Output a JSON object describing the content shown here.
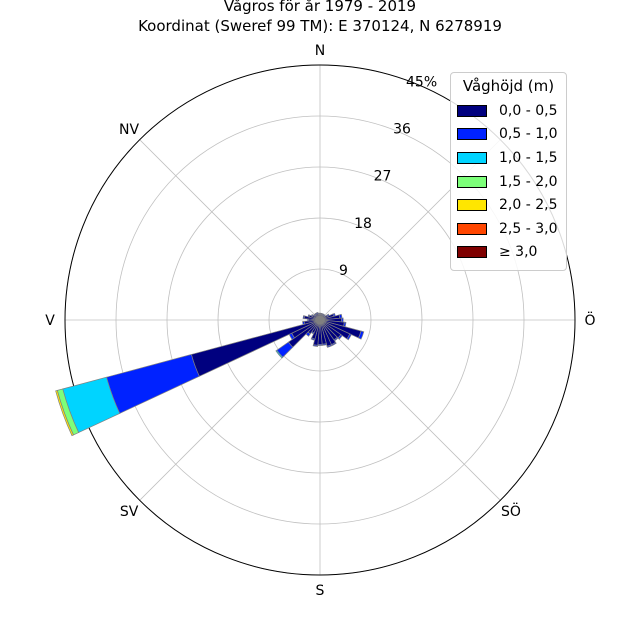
{
  "chart_data": {
    "type": "polar-bar",
    "title": "Vågros för år 1979 - 2019",
    "subtitle": "Koordinat (Sweref 99 TM): E 370124, N 6278919",
    "radial_tick_labels": [
      "9",
      "18",
      "27",
      "36",
      "45%"
    ],
    "rmax": 45,
    "direction_labels": [
      {
        "label": "N",
        "deg": 0
      },
      {
        "label": "NV",
        "deg": 315
      },
      {
        "label": "V",
        "deg": 270
      },
      {
        "label": "SV",
        "deg": 225
      },
      {
        "label": "S",
        "deg": 180
      },
      {
        "label": "SÖ",
        "deg": 135
      },
      {
        "label": "Ö",
        "deg": 90
      }
    ],
    "legend_title": "Våghöjd (m)",
    "legend_position": "top-right",
    "bins": [
      {
        "label": "0,0 - 0,5",
        "color": "#00007f"
      },
      {
        "label": "0,5 - 1,0",
        "color": "#0022ff"
      },
      {
        "label": "1,0 - 1,5",
        "color": "#00d4ff"
      },
      {
        "label": "1,5 - 2,0",
        "color": "#7cff79"
      },
      {
        "label": "2,0 - 2,5",
        "color": "#ffe600"
      },
      {
        "label": "2,5 - 3,0",
        "color": "#ff4600"
      },
      {
        "label": "≥ 3,0",
        "color": "#7f0000"
      }
    ],
    "sector_width_deg": 10,
    "sectors": [
      {
        "dir": 0,
        "values": [
          1.0,
          0.2,
          0,
          0,
          0,
          0,
          0
        ]
      },
      {
        "dir": 10,
        "values": [
          1.0,
          0.2,
          0,
          0,
          0,
          0,
          0
        ]
      },
      {
        "dir": 20,
        "values": [
          1.0,
          0.2,
          0,
          0,
          0,
          0,
          0
        ]
      },
      {
        "dir": 30,
        "values": [
          1.0,
          0.2,
          0,
          0,
          0,
          0,
          0
        ]
      },
      {
        "dir": 40,
        "values": [
          1.0,
          0.2,
          0,
          0,
          0,
          0,
          0
        ]
      },
      {
        "dir": 50,
        "values": [
          1.0,
          0.2,
          0,
          0,
          0,
          0,
          0
        ]
      },
      {
        "dir": 60,
        "values": [
          1.5,
          0.3,
          0,
          0,
          0,
          0,
          0
        ]
      },
      {
        "dir": 70,
        "values": [
          2.5,
          0.3,
          0,
          0,
          0,
          0,
          0
        ]
      },
      {
        "dir": 80,
        "values": [
          3.5,
          0.4,
          0,
          0,
          0,
          0,
          0
        ]
      },
      {
        "dir": 90,
        "values": [
          3.8,
          0.3,
          0,
          0,
          0,
          0,
          0
        ]
      },
      {
        "dir": 100,
        "values": [
          4.3,
          0.3,
          0,
          0,
          0,
          0,
          0
        ]
      },
      {
        "dir": 110,
        "values": [
          7.5,
          0.5,
          0,
          0,
          0,
          0,
          0
        ]
      },
      {
        "dir": 120,
        "values": [
          5.8,
          0.3,
          0,
          0,
          0,
          0,
          0
        ]
      },
      {
        "dir": 130,
        "values": [
          4.5,
          0.3,
          0,
          0,
          0,
          0,
          0
        ]
      },
      {
        "dir": 140,
        "values": [
          4.3,
          0.2,
          0,
          0,
          0,
          0,
          0
        ]
      },
      {
        "dir": 150,
        "values": [
          4.8,
          0.2,
          0,
          0,
          0,
          0,
          0
        ]
      },
      {
        "dir": 160,
        "values": [
          4.8,
          0.2,
          0,
          0,
          0,
          0,
          0
        ]
      },
      {
        "dir": 170,
        "values": [
          4.3,
          0.2,
          0,
          0,
          0,
          0,
          0
        ]
      },
      {
        "dir": 180,
        "values": [
          4.3,
          0.2,
          0,
          0,
          0,
          0,
          0
        ]
      },
      {
        "dir": 190,
        "values": [
          4.5,
          0.2,
          0,
          0,
          0,
          0,
          0
        ]
      },
      {
        "dir": 200,
        "values": [
          3.5,
          0.2,
          0,
          0,
          0,
          0,
          0
        ]
      },
      {
        "dir": 210,
        "values": [
          2.5,
          0.2,
          0,
          0,
          0,
          0,
          0
        ]
      },
      {
        "dir": 220,
        "values": [
          3.0,
          0.5,
          0,
          0,
          0,
          0,
          0
        ]
      },
      {
        "dir": 230,
        "values": [
          6.8,
          2.5,
          0.2,
          0,
          0,
          0,
          0
        ]
      },
      {
        "dir": 240,
        "values": [
          5.5,
          0.5,
          0,
          0,
          0,
          0,
          0
        ]
      },
      {
        "dir": 250,
        "values": [
          23.5,
          15.5,
          8.0,
          1.0,
          0.3,
          0,
          0
        ]
      },
      {
        "dir": 260,
        "values": [
          2.8,
          0.3,
          0,
          0,
          0,
          0,
          0
        ]
      },
      {
        "dir": 270,
        "values": [
          2.0,
          0.2,
          0,
          0,
          0,
          0,
          0
        ]
      },
      {
        "dir": 280,
        "values": [
          2.8,
          0.2,
          0,
          0,
          0,
          0,
          0
        ]
      },
      {
        "dir": 290,
        "values": [
          2.0,
          0.2,
          0,
          0,
          0,
          0,
          0
        ]
      },
      {
        "dir": 300,
        "values": [
          1.5,
          0.2,
          0,
          0,
          0,
          0,
          0
        ]
      },
      {
        "dir": 310,
        "values": [
          1.2,
          0.2,
          0,
          0,
          0,
          0,
          0
        ]
      },
      {
        "dir": 320,
        "values": [
          1.2,
          0.2,
          0,
          0,
          0,
          0,
          0
        ]
      },
      {
        "dir": 330,
        "values": [
          1.2,
          0.2,
          0,
          0,
          0,
          0,
          0
        ]
      },
      {
        "dir": 340,
        "values": [
          1.2,
          0.2,
          0,
          0,
          0,
          0,
          0
        ]
      },
      {
        "dir": 350,
        "values": [
          1.0,
          0.2,
          0,
          0,
          0,
          0,
          0
        ]
      }
    ]
  }
}
